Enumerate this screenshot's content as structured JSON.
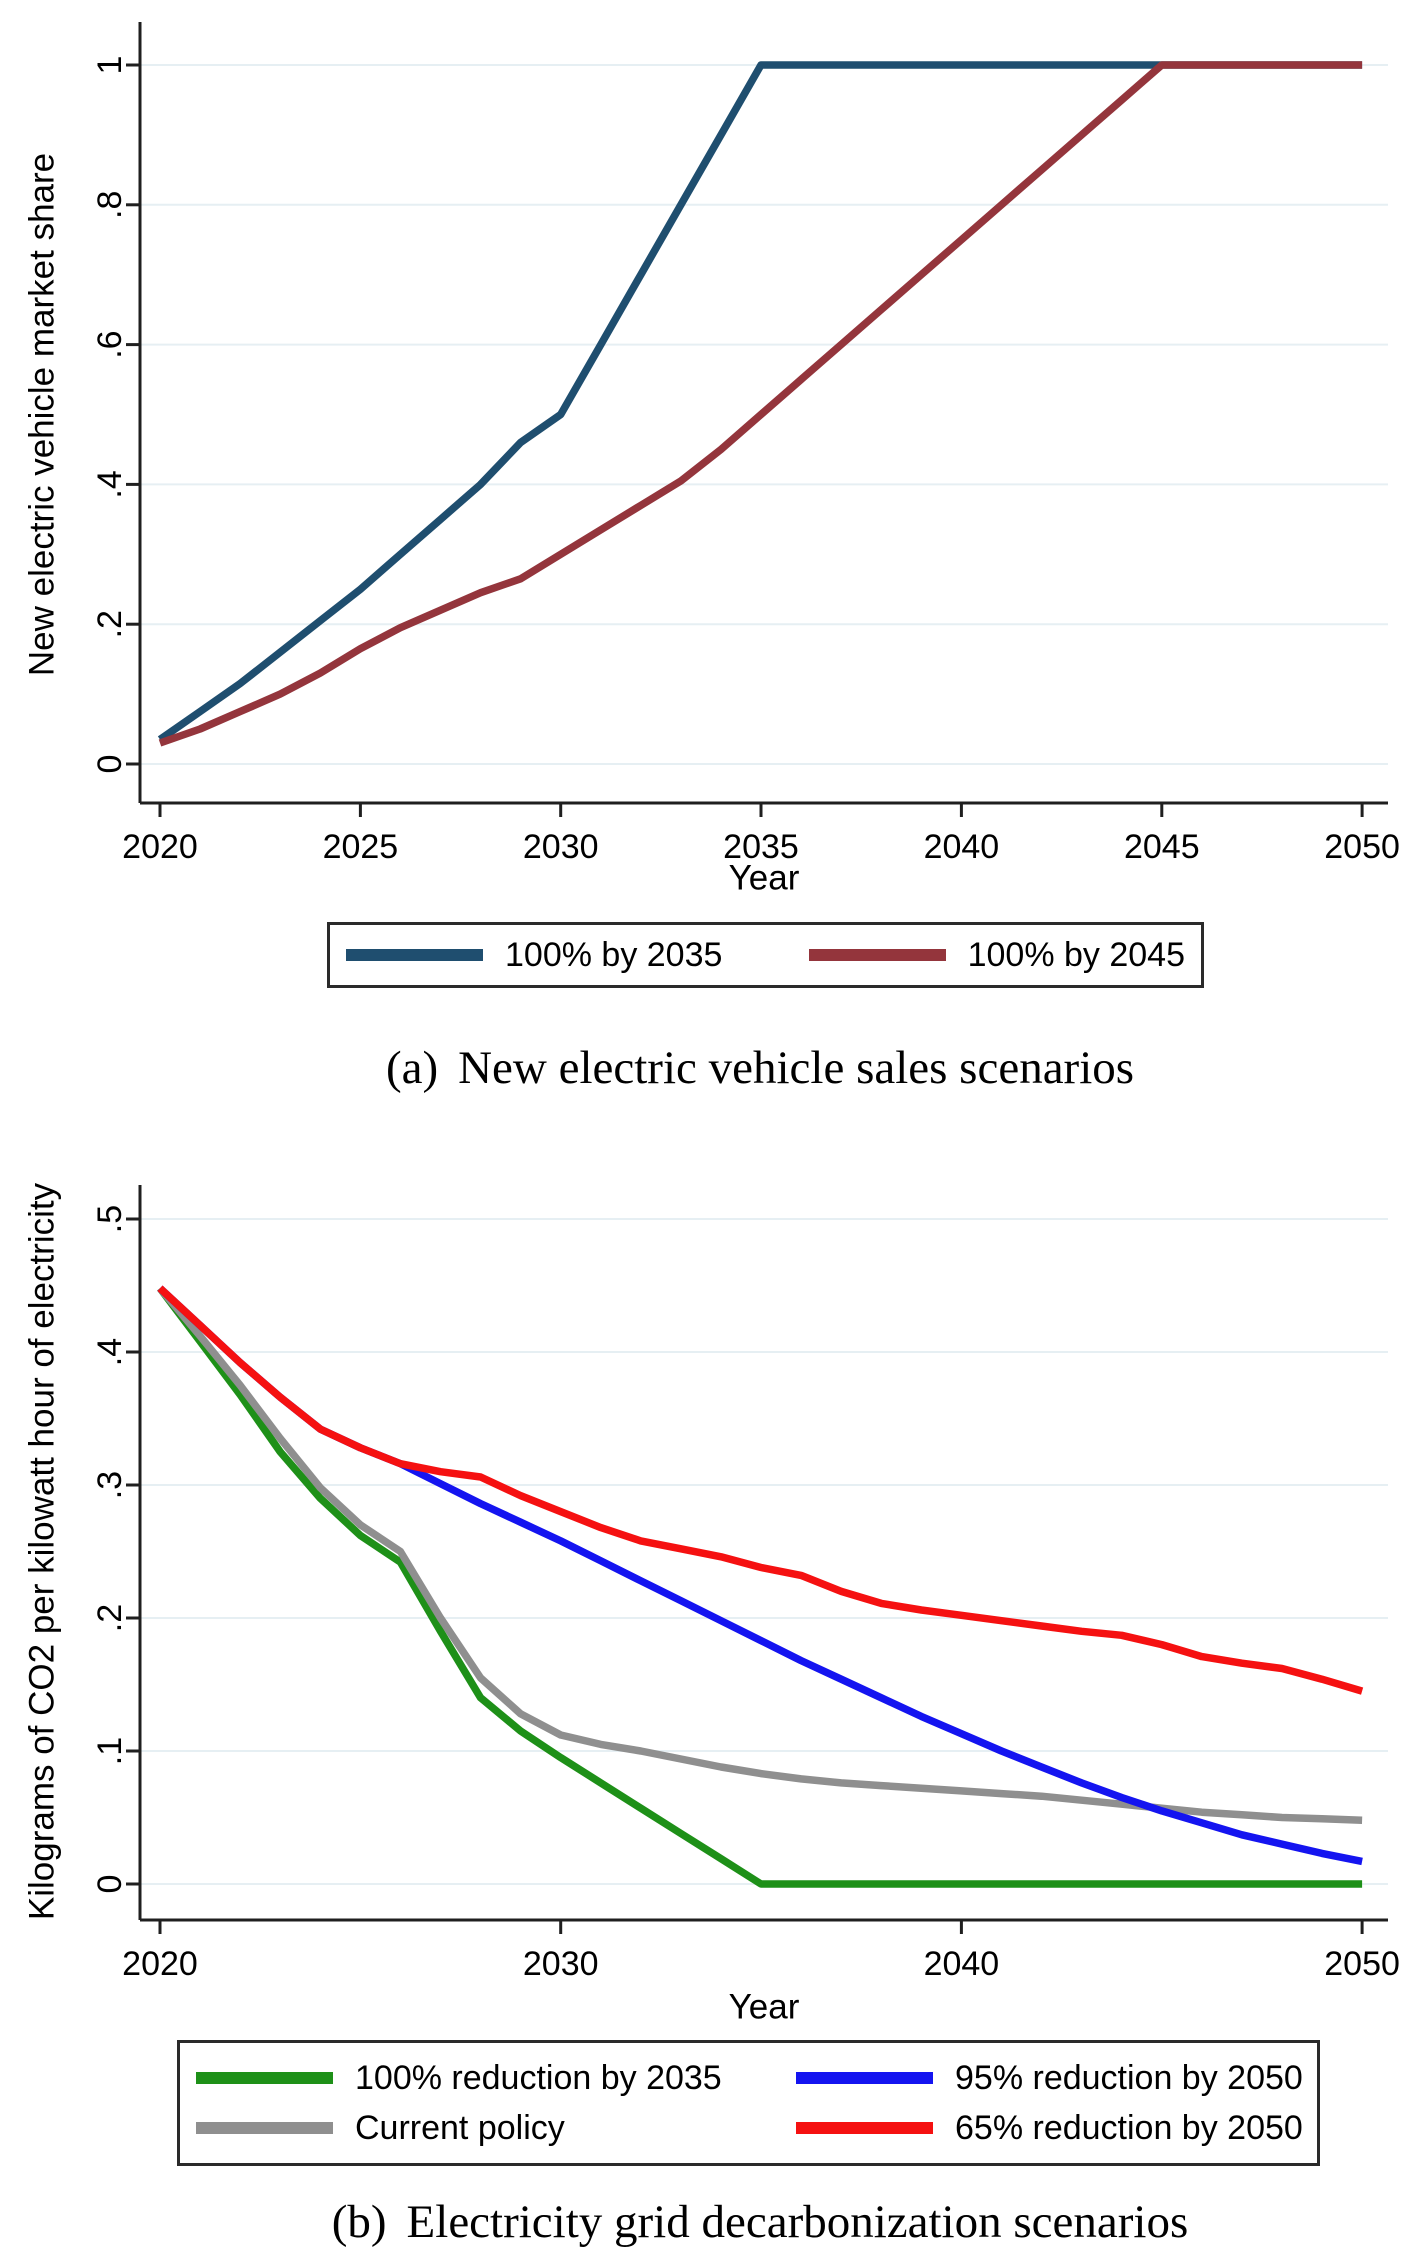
{
  "figure": {
    "captions": [
      {
        "index": "(a)",
        "text": "New electric vehicle sales scenarios"
      },
      {
        "index": "(b)",
        "text": "Electricity grid decarbonization scenarios"
      }
    ]
  },
  "chart_data": [
    {
      "id": "panel-a",
      "type": "line",
      "title": "(a) New electric vehicle sales scenarios",
      "xlabel": "Year",
      "ylabel": "New electric vehicle market share",
      "xlim": [
        2020,
        2050
      ],
      "ylim": [
        0,
        1
      ],
      "xticks": [
        2020,
        2025,
        2030,
        2035,
        2040,
        2045,
        2050
      ],
      "yticks": [
        0,
        0.2,
        0.4,
        0.6,
        0.8,
        1
      ],
      "ytick_labels": [
        "0",
        ".2",
        ".4",
        ".6",
        ".8",
        "1"
      ],
      "grid": true,
      "grid_color": "#E6EFF3",
      "axis_color": "#1f1f1f",
      "legend_position": "bottom",
      "x": [
        2020,
        2021,
        2022,
        2023,
        2024,
        2025,
        2026,
        2027,
        2028,
        2029,
        2030,
        2031,
        2032,
        2033,
        2034,
        2035,
        2036,
        2037,
        2038,
        2039,
        2040,
        2041,
        2042,
        2043,
        2044,
        2045,
        2046,
        2047,
        2048,
        2049,
        2050
      ],
      "series": [
        {
          "name": "100% by 2035",
          "color": "#1F4E6F",
          "values": [
            0.035,
            0.075,
            0.115,
            0.16,
            0.205,
            0.25,
            0.3,
            0.35,
            0.4,
            0.46,
            0.5,
            0.6,
            0.7,
            0.8,
            0.9,
            1,
            1,
            1,
            1,
            1,
            1,
            1,
            1,
            1,
            1,
            1,
            1,
            1,
            1,
            1,
            1
          ]
        },
        {
          "name": "100% by 2045",
          "color": "#94353C",
          "values": [
            0.03,
            0.05,
            0.075,
            0.1,
            0.13,
            0.165,
            0.195,
            0.22,
            0.245,
            0.265,
            0.3,
            0.335,
            0.37,
            0.405,
            0.45,
            0.5,
            0.55,
            0.6,
            0.65,
            0.7,
            0.75,
            0.8,
            0.85,
            0.9,
            0.95,
            1,
            1,
            1,
            1,
            1,
            1
          ]
        }
      ]
    },
    {
      "id": "panel-b",
      "type": "line",
      "title": "(b) Electricity grid decarbonization scenarios",
      "xlabel": "Year",
      "ylabel": "Kilograms of CO2 per kilowatt hour of electricity",
      "xlim": [
        2020,
        2050
      ],
      "ylim": [
        0,
        0.5
      ],
      "xticks": [
        2020,
        2030,
        2040,
        2050
      ],
      "yticks": [
        0,
        0.1,
        0.2,
        0.3,
        0.4,
        0.5
      ],
      "ytick_labels": [
        "0",
        ".1",
        ".2",
        ".3",
        ".4",
        ".5"
      ],
      "grid": true,
      "grid_color": "#E6EFF3",
      "axis_color": "#1f1f1f",
      "legend_position": "bottom",
      "x": [
        2020,
        2021,
        2022,
        2023,
        2024,
        2025,
        2026,
        2027,
        2028,
        2029,
        2030,
        2031,
        2032,
        2033,
        2034,
        2035,
        2036,
        2037,
        2038,
        2039,
        2040,
        2041,
        2042,
        2043,
        2044,
        2045,
        2046,
        2047,
        2048,
        2049,
        2050
      ],
      "series": [
        {
          "name": "100% reduction by 2035",
          "color": "#1E9018",
          "values": [
            0.448,
            0.408,
            0.368,
            0.325,
            0.29,
            0.262,
            0.242,
            0.19,
            0.14,
            0.115,
            0.095,
            0.076,
            0.057,
            0.038,
            0.019,
            0,
            0,
            0,
            0,
            0,
            0,
            0,
            0,
            0,
            0,
            0,
            0,
            0,
            0,
            0,
            0
          ]
        },
        {
          "name": "Current policy",
          "color": "#8F8F8F",
          "values": [
            0.448,
            0.412,
            0.375,
            0.335,
            0.298,
            0.27,
            0.25,
            0.2,
            0.155,
            0.128,
            0.112,
            0.105,
            0.1,
            0.094,
            0.088,
            0.083,
            0.079,
            0.076,
            0.074,
            0.072,
            0.07,
            0.068,
            0.066,
            0.063,
            0.06,
            0.057,
            0.054,
            0.052,
            0.05,
            0.049,
            0.048
          ]
        },
        {
          "name": "95% reduction by 2050",
          "color": "#1414F0",
          "values": [
            0.448,
            0.42,
            0.392,
            0.366,
            0.342,
            0.328,
            0.316,
            0.301,
            0.286,
            0.272,
            0.258,
            0.243,
            0.228,
            0.213,
            0.198,
            0.183,
            0.168,
            0.154,
            0.14,
            0.126,
            0.113,
            0.1,
            0.088,
            0.076,
            0.065,
            0.055,
            0.046,
            0.037,
            0.03,
            0.023,
            0.017
          ]
        },
        {
          "name": "65% reduction by 2050",
          "color": "#F51111",
          "values": [
            0.448,
            0.42,
            0.392,
            0.366,
            0.342,
            0.328,
            0.316,
            0.31,
            0.306,
            0.292,
            0.28,
            0.268,
            0.258,
            0.252,
            0.246,
            0.238,
            0.232,
            0.22,
            0.211,
            0.206,
            0.202,
            0.198,
            0.194,
            0.19,
            0.187,
            0.18,
            0.171,
            0.166,
            0.162,
            0.154,
            0.145
          ]
        }
      ]
    }
  ]
}
